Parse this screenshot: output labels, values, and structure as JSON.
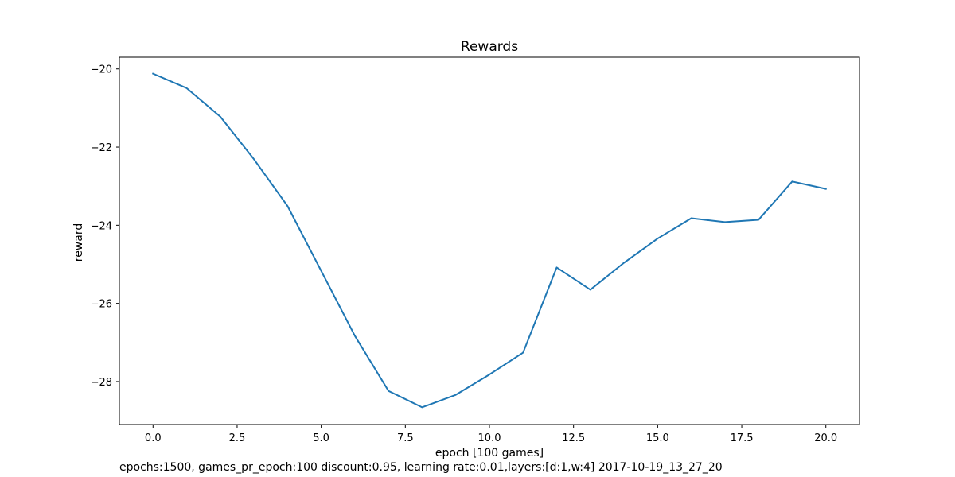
{
  "chart_data": {
    "type": "line",
    "title": "Rewards",
    "xlabel": "epoch [100 games]",
    "ylabel": "reward",
    "xlim": [
      -1.0,
      21.0
    ],
    "ylim": [
      -29.1,
      -19.7
    ],
    "xticks": [
      0.0,
      2.5,
      5.0,
      7.5,
      10.0,
      12.5,
      15.0,
      17.5,
      20.0
    ],
    "xtick_labels": [
      "0.0",
      "2.5",
      "5.0",
      "7.5",
      "10.0",
      "12.5",
      "15.0",
      "17.5",
      "20.0"
    ],
    "yticks": [
      -28,
      -26,
      -24,
      -22,
      -20
    ],
    "ytick_labels": [
      "−28",
      "−26",
      "−24",
      "−22",
      "−20"
    ],
    "grid": false,
    "series": [
      {
        "color": "#1f77b4",
        "x": [
          0,
          1,
          2,
          3,
          4,
          5,
          6,
          7,
          8,
          9,
          10,
          11,
          12,
          13,
          14,
          15,
          16,
          17,
          18,
          19,
          20
        ],
        "y": [
          -20.12,
          -20.49,
          -21.22,
          -22.31,
          -23.51,
          -25.17,
          -26.83,
          -28.24,
          -28.66,
          -28.34,
          -27.82,
          -27.26,
          -25.08,
          -25.65,
          -24.96,
          -24.34,
          -23.82,
          -23.92,
          -23.86,
          -22.88,
          -23.07
        ]
      }
    ]
  },
  "footnote": "epochs:1500, games_pr_epoch:100 discount:0.95, learning rate:0.01,layers:[d:1,w:4] 2017-10-19_13_27_20"
}
